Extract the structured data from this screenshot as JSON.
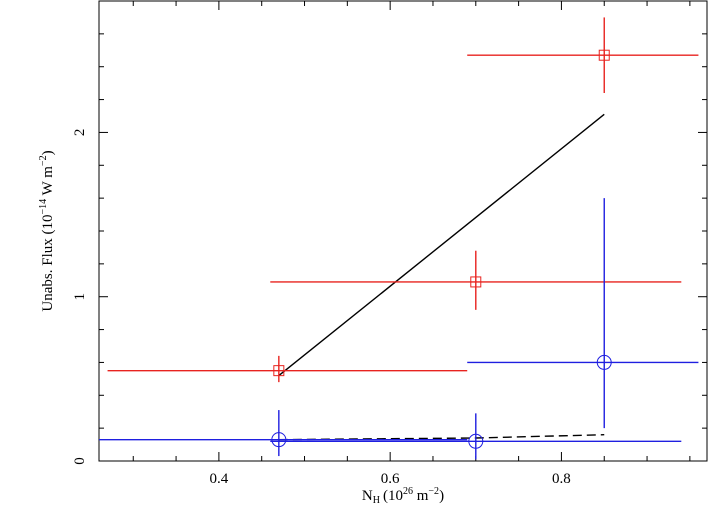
{
  "chart_data": {
    "type": "scatter",
    "title": "",
    "xlabel": "N",
    "xlabel_sub": "H",
    "xlabel_unit": "(10",
    "xlabel_exp": "26",
    "xlabel_tail": " m",
    "xlabel_tail_exp": "−2",
    "xlabel_close": ")",
    "ylabel": "Unabs. Flux (10",
    "ylabel_exp": "−14",
    "ylabel_unit": " W m",
    "ylabel_unit_exp": "−2",
    "ylabel_close": ")",
    "xlim": [
      0.26,
      0.97
    ],
    "ylim": [
      0,
      2.8
    ],
    "xticks": [
      0.4,
      0.6,
      0.8
    ],
    "xtick_labels": [
      "0.4",
      "0.6",
      "0.8"
    ],
    "yticks": [
      0,
      1,
      2
    ],
    "ytick_labels": [
      "0",
      "1",
      "2"
    ],
    "grid": false,
    "series": [
      {
        "marker": "square",
        "color": "#e8231f",
        "points": [
          {
            "x": 0.47,
            "y": 0.55,
            "xerr": [
              0.27,
              0.69
            ],
            "yerr": [
              0.48,
              0.64
            ]
          },
          {
            "x": 0.7,
            "y": 1.09,
            "xerr": [
              0.46,
              0.94
            ],
            "yerr": [
              0.92,
              1.28
            ]
          },
          {
            "x": 0.85,
            "y": 2.47,
            "xerr": [
              0.69,
              0.96
            ],
            "yerr": [
              2.24,
              2.7
            ]
          }
        ]
      },
      {
        "marker": "circle",
        "color": "#1f1fe0",
        "points": [
          {
            "x": 0.47,
            "y": 0.13,
            "xerr": [
              0.26,
              0.69
            ],
            "yerr": [
              0.03,
              0.31
            ]
          },
          {
            "x": 0.7,
            "y": 0.12,
            "xerr": [
              0.46,
              0.94
            ],
            "yerr": [
              0.01,
              0.29
            ]
          },
          {
            "x": 0.85,
            "y": 0.6,
            "xerr": [
              0.69,
              0.96
            ],
            "yerr": [
              0.2,
              1.6
            ]
          }
        ]
      }
    ],
    "lines": [
      {
        "style": "solid",
        "color": "#000000",
        "x": [
          0.47,
          0.85
        ],
        "y": [
          0.52,
          2.11
        ]
      },
      {
        "style": "dashed",
        "color": "#000000",
        "x": [
          0.47,
          0.7,
          0.85
        ],
        "y": [
          0.13,
          0.14,
          0.16
        ]
      }
    ]
  }
}
